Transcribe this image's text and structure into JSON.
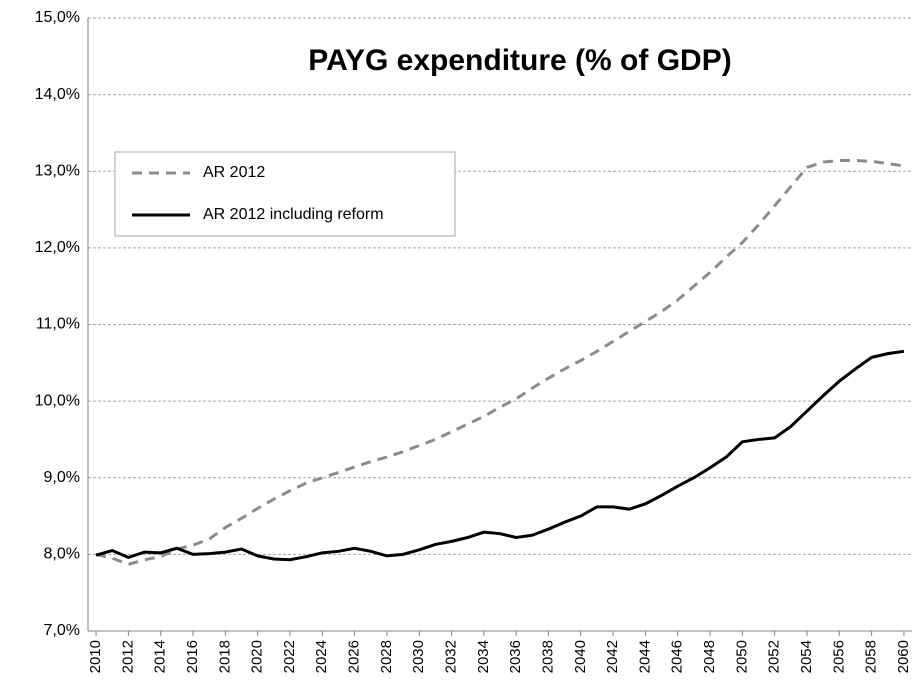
{
  "chart_data": {
    "type": "line",
    "title": "PAYG expenditure (% of GDP)",
    "x": [
      2010,
      2011,
      2012,
      2013,
      2014,
      2015,
      2016,
      2017,
      2018,
      2019,
      2020,
      2021,
      2022,
      2023,
      2024,
      2025,
      2026,
      2027,
      2028,
      2029,
      2030,
      2031,
      2032,
      2033,
      2034,
      2035,
      2036,
      2037,
      2038,
      2039,
      2040,
      2041,
      2042,
      2043,
      2044,
      2045,
      2046,
      2047,
      2048,
      2049,
      2050,
      2051,
      2052,
      2053,
      2054,
      2055,
      2056,
      2057,
      2058,
      2059,
      2060
    ],
    "series": [
      {
        "name": "AR 2012",
        "color": "#8c8c8c",
        "dashed": true,
        "values": [
          8.0,
          7.95,
          7.87,
          7.93,
          7.97,
          8.07,
          8.12,
          8.2,
          8.35,
          8.47,
          8.6,
          8.72,
          8.83,
          8.93,
          9.0,
          9.07,
          9.14,
          9.21,
          9.27,
          9.34,
          9.42,
          9.5,
          9.6,
          9.7,
          9.8,
          9.92,
          10.03,
          10.17,
          10.3,
          10.42,
          10.53,
          10.65,
          10.78,
          10.91,
          11.04,
          11.17,
          11.32,
          11.5,
          11.68,
          11.88,
          12.07,
          12.3,
          12.55,
          12.8,
          13.05,
          13.12,
          13.14,
          13.14,
          13.13,
          13.1,
          13.07
        ]
      },
      {
        "name": "AR 2012 including reform",
        "color": "#000000",
        "dashed": false,
        "values": [
          7.99,
          8.05,
          7.96,
          8.03,
          8.02,
          8.08,
          8.0,
          8.01,
          8.03,
          8.07,
          7.98,
          7.94,
          7.93,
          7.97,
          8.02,
          8.04,
          8.08,
          8.04,
          7.98,
          8.0,
          8.06,
          8.13,
          8.17,
          8.22,
          8.29,
          8.27,
          8.22,
          8.25,
          8.33,
          8.42,
          8.5,
          8.62,
          8.62,
          8.59,
          8.66,
          8.77,
          8.89,
          9.0,
          9.13,
          9.27,
          9.47,
          9.5,
          9.52,
          9.67,
          9.87,
          10.07,
          10.26,
          10.42,
          10.57,
          10.62,
          10.65
        ]
      }
    ],
    "xlim": [
      2009.5,
      2060.5
    ],
    "xticks": [
      2010,
      2012,
      2014,
      2016,
      2018,
      2020,
      2022,
      2024,
      2026,
      2028,
      2030,
      2032,
      2034,
      2036,
      2038,
      2040,
      2042,
      2044,
      2046,
      2048,
      2050,
      2052,
      2054,
      2056,
      2058,
      2060
    ],
    "ylim": [
      7,
      15
    ],
    "yticks": [
      {
        "value": 7,
        "label": "7,0%"
      },
      {
        "value": 8,
        "label": "8,0%"
      },
      {
        "value": 9,
        "label": "9,0%"
      },
      {
        "value": 10,
        "label": "10,0%"
      },
      {
        "value": 11,
        "label": "11,0%"
      },
      {
        "value": 12,
        "label": "12,0%"
      },
      {
        "value": 13,
        "label": "13,0%"
      },
      {
        "value": 14,
        "label": "14,0%"
      },
      {
        "value": 15,
        "label": "15,0%"
      }
    ],
    "grid": true
  }
}
